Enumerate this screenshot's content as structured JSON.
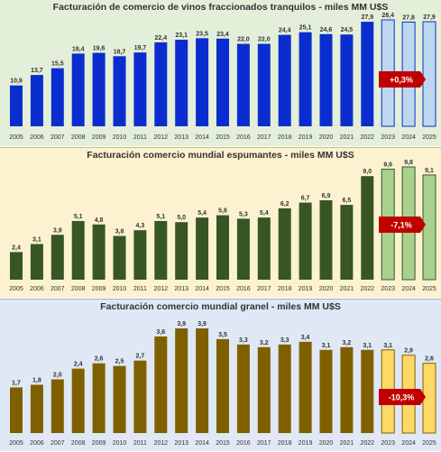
{
  "chart_data": [
    {
      "type": "bar",
      "title": "Facturación de comercio de vinos fraccionados tranquilos - miles MM U$S",
      "categories": [
        "2005",
        "2006",
        "2007",
        "2008",
        "2009",
        "2010",
        "2011",
        "2012",
        "2013",
        "2014",
        "2015",
        "2016",
        "2017",
        "2018",
        "2019",
        "2020",
        "2021",
        "2022",
        "2023",
        "2024",
        "2025"
      ],
      "values": [
        10.9,
        13.7,
        15.5,
        19.4,
        19.6,
        18.7,
        19.7,
        22.4,
        23.1,
        23.5,
        23.4,
        22.0,
        22.0,
        24.4,
        25.1,
        24.6,
        24.5,
        27.9,
        28.4,
        27.8,
        27.9
      ],
      "value_labels": [
        "10,9",
        "13,7",
        "15,5",
        "19,4",
        "19,6",
        "18,7",
        "19,7",
        "22,4",
        "23,1",
        "23,5",
        "23,4",
        "22,0",
        "22,0",
        "24,4",
        "25,1",
        "24,6",
        "24,5",
        "27,9",
        "28,4",
        "27,8",
        "27,9"
      ],
      "projected_from_index": 18,
      "badge": "+0,3%",
      "colors": {
        "bar": "#0b2dcf",
        "projected": "#bdd7ee",
        "projected_edge": "#0b2dcf",
        "badge": "#c00000"
      }
    },
    {
      "type": "bar",
      "title": "Facturación comercio mundial espumantes - miles MM U$S",
      "categories": [
        "2005",
        "2006",
        "2007",
        "2008",
        "2009",
        "2010",
        "2011",
        "2012",
        "2013",
        "2014",
        "2015",
        "2016",
        "2017",
        "2018",
        "2019",
        "2020",
        "2021",
        "2022",
        "2023",
        "2024",
        "2025"
      ],
      "values": [
        2.4,
        3.1,
        3.9,
        5.1,
        4.8,
        3.8,
        4.3,
        5.1,
        5.0,
        5.4,
        5.6,
        5.3,
        5.4,
        6.2,
        6.7,
        6.9,
        6.5,
        9.0,
        9.6,
        9.8,
        9.1
      ],
      "value_labels": [
        "2,4",
        "3,1",
        "3,9",
        "5,1",
        "4,8",
        "3,8",
        "4,3",
        "5,1",
        "5,0",
        "5,4",
        "5,6",
        "5,3",
        "5,4",
        "6,2",
        "6,7",
        "6,9",
        "6,5",
        "9,0",
        "9,6",
        "9,8",
        "9,1"
      ],
      "projected_from_index": 18,
      "badge": "-7,1%",
      "colors": {
        "bar": "#375623",
        "projected": "#a9d18e",
        "projected_edge": "#375623",
        "badge": "#c00000"
      }
    },
    {
      "type": "bar",
      "title": "Facturación comercio mundial granel - miles MM U$S",
      "categories": [
        "2005",
        "2006",
        "2007",
        "2008",
        "2009",
        "2010",
        "2011",
        "2012",
        "2013",
        "2014",
        "2015",
        "2016",
        "2017",
        "2018",
        "2019",
        "2020",
        "2021",
        "2022",
        "2023",
        "2024",
        "2025"
      ],
      "values": [
        1.7,
        1.8,
        2.0,
        2.4,
        2.6,
        2.5,
        2.7,
        3.6,
        3.9,
        3.9,
        3.5,
        3.3,
        3.2,
        3.3,
        3.4,
        3.1,
        3.2,
        3.1,
        3.1,
        2.9,
        2.6
      ],
      "value_labels": [
        "1,7",
        "1,8",
        "2,0",
        "2,4",
        "2,6",
        "2,5",
        "2,7",
        "3,6",
        "3,9",
        "3,9",
        "3,5",
        "3,3",
        "3,2",
        "3,3",
        "3,4",
        "3,1",
        "3,2",
        "3,1",
        "3,1",
        "2,9",
        "2,6"
      ],
      "projected_from_index": 18,
      "badge": "-10,3%",
      "colors": {
        "bar": "#7f6000",
        "projected": "#ffd966",
        "projected_edge": "#7f6000",
        "badge": "#c00000"
      }
    }
  ]
}
